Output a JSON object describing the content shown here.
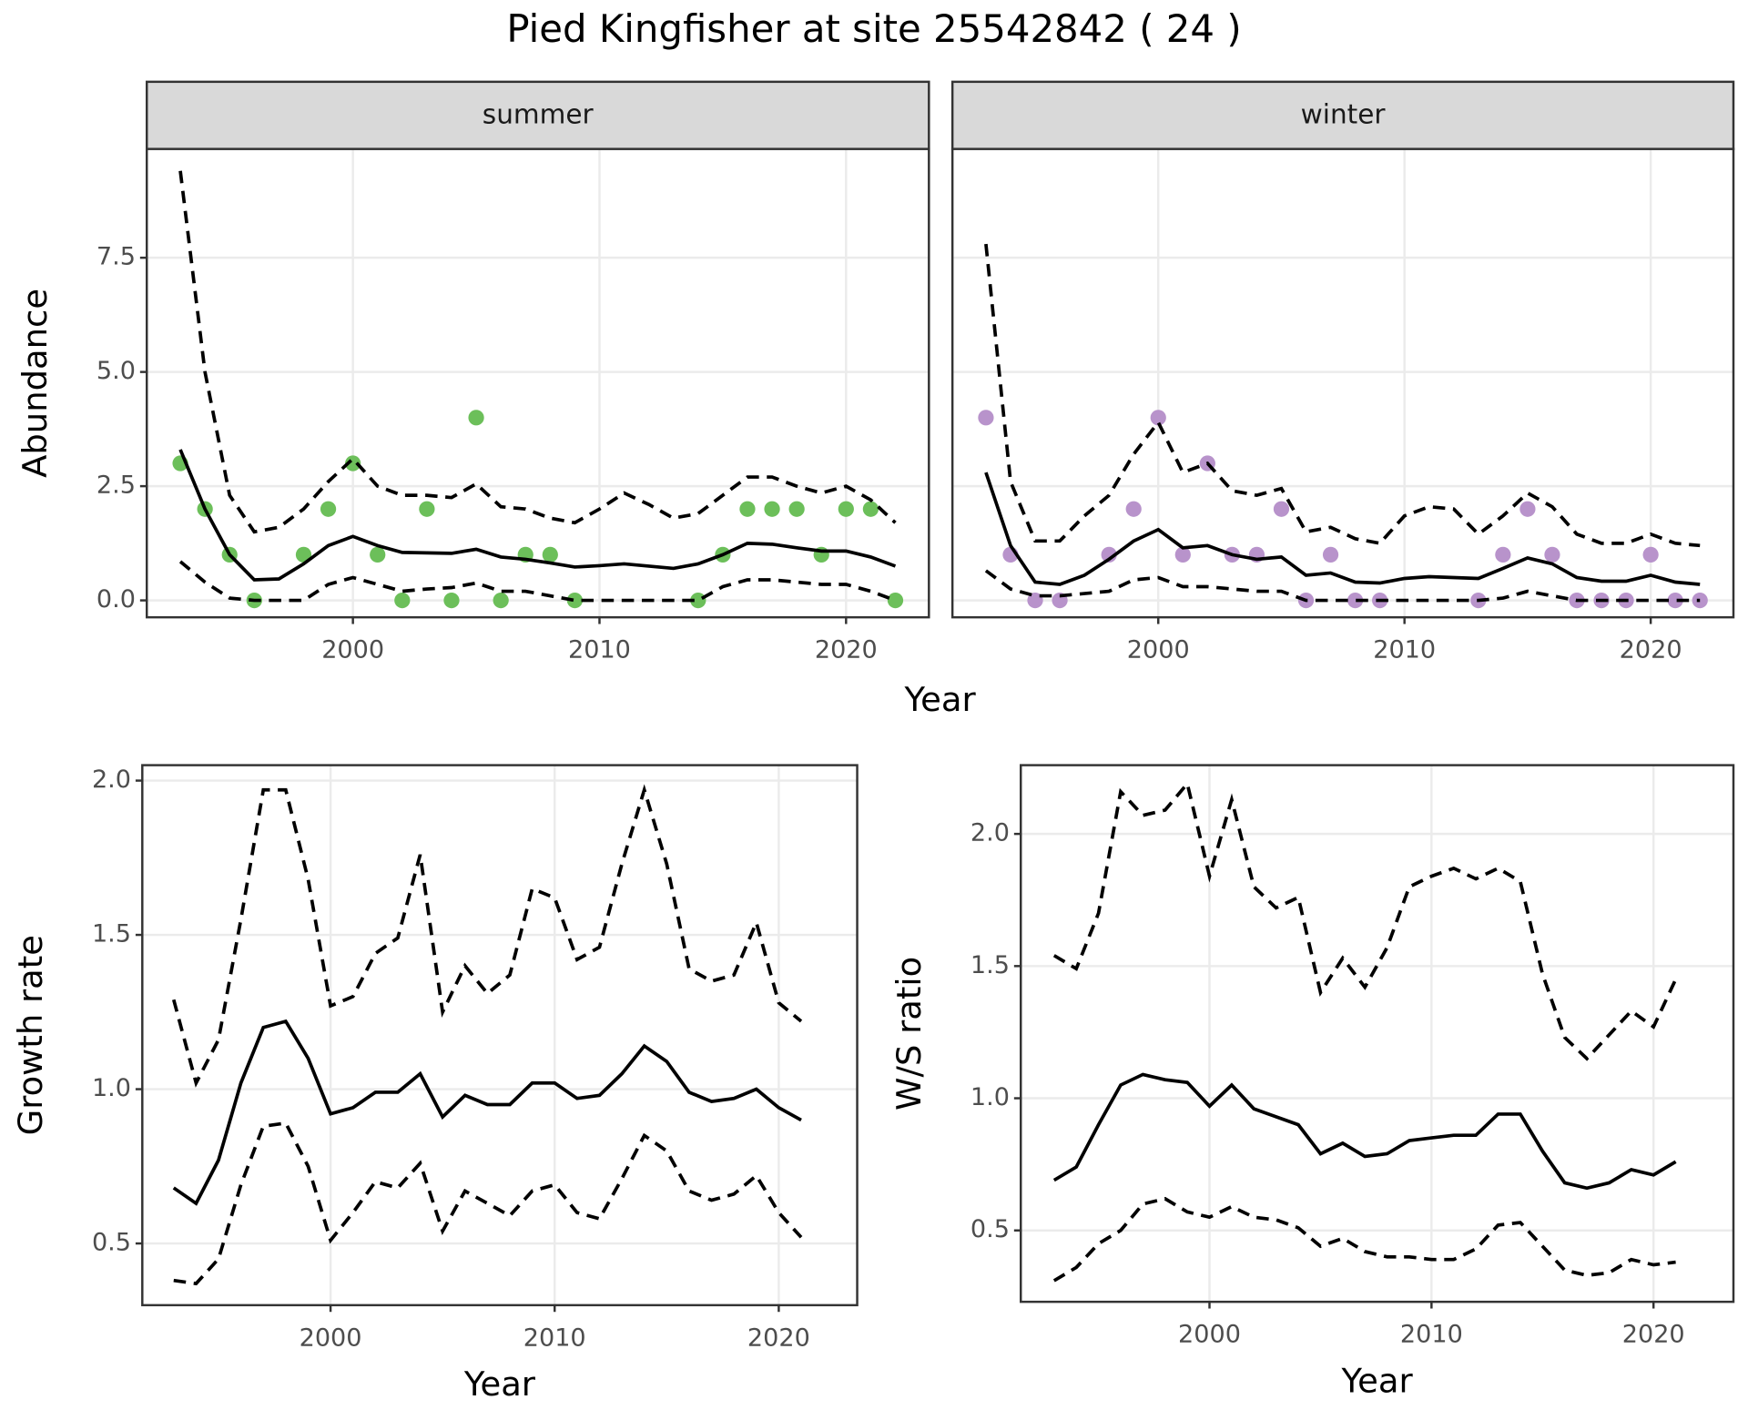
{
  "title": "Pied Kingfisher at site 25542842 ( 24 )",
  "shared_xlabel": "Year",
  "chart_data": [
    {
      "type": "line",
      "strip": "summer",
      "ylabel": "Abundance",
      "show_ytick_labels": true,
      "x": [
        1993,
        1994,
        1995,
        1996,
        1997,
        1998,
        1999,
        2000,
        2001,
        2002,
        2003,
        2004,
        2005,
        2006,
        2007,
        2008,
        2009,
        2010,
        2011,
        2012,
        2013,
        2014,
        2015,
        2016,
        2017,
        2018,
        2019,
        2020,
        2021,
        2022
      ],
      "series": [
        {
          "style": "points",
          "color": "#6cbf5a",
          "values": [
            3,
            2,
            1,
            0,
            null,
            1,
            2,
            3,
            1,
            0,
            2,
            0,
            4,
            0,
            1,
            1,
            0,
            null,
            null,
            null,
            null,
            0,
            1,
            2,
            2,
            2,
            1,
            2,
            2,
            0
          ]
        },
        {
          "style": "solid",
          "color": "#000000",
          "values": [
            3.3,
            2.0,
            1.0,
            0.45,
            0.47,
            0.8,
            1.2,
            1.4,
            1.2,
            1.05,
            1.04,
            1.03,
            1.12,
            0.95,
            0.9,
            0.82,
            0.73,
            0.76,
            0.8,
            0.75,
            0.7,
            0.8,
            1.0,
            1.25,
            1.23,
            1.15,
            1.08,
            1.08,
            0.95,
            0.75
          ]
        },
        {
          "style": "dashed",
          "color": "#000000",
          "values": [
            9.4,
            5.0,
            2.3,
            1.5,
            1.6,
            2.0,
            2.6,
            3.1,
            2.5,
            2.3,
            2.3,
            2.25,
            2.55,
            2.05,
            2.0,
            1.8,
            1.7,
            2.0,
            2.35,
            2.1,
            1.8,
            1.9,
            2.3,
            2.7,
            2.7,
            2.5,
            2.35,
            2.5,
            2.2,
            1.7
          ]
        },
        {
          "style": "dashed",
          "color": "#000000",
          "values": [
            0.85,
            0.4,
            0.05,
            0,
            0,
            0,
            0.35,
            0.5,
            0.35,
            0.2,
            0.25,
            0.28,
            0.38,
            0.2,
            0.2,
            0.1,
            0,
            0,
            0,
            0,
            0,
            0,
            0.3,
            0.45,
            0.45,
            0.4,
            0.35,
            0.35,
            0.2,
            0
          ]
        }
      ],
      "xlim": [
        1991.64,
        2023.36
      ],
      "xticks": [
        2000,
        2010,
        2020
      ],
      "ylim": [
        -0.37,
        9.88
      ],
      "yticks": [
        {
          "value": 0,
          "label": "0.0"
        },
        2.5,
        {
          "value": 5,
          "label": "5.0"
        },
        7.5
      ],
      "grid": true
    },
    {
      "type": "line",
      "strip": "winter",
      "show_ytick_labels": false,
      "x": [
        1993,
        1994,
        1995,
        1996,
        1997,
        1998,
        1999,
        2000,
        2001,
        2002,
        2003,
        2004,
        2005,
        2006,
        2007,
        2008,
        2009,
        2010,
        2011,
        2012,
        2013,
        2014,
        2015,
        2016,
        2017,
        2018,
        2019,
        2020,
        2021,
        2022
      ],
      "series": [
        {
          "style": "points",
          "color": "#b893cb",
          "values": [
            4,
            1,
            0,
            0,
            null,
            1,
            2,
            4,
            1,
            3,
            1,
            1,
            2,
            0,
            1,
            0,
            0,
            null,
            null,
            null,
            0,
            1,
            2,
            1,
            0,
            0,
            0,
            1,
            0,
            0
          ]
        },
        {
          "style": "solid",
          "color": "#000000",
          "values": [
            2.8,
            1.2,
            0.4,
            0.35,
            0.55,
            0.9,
            1.3,
            1.55,
            1.15,
            1.2,
            1.0,
            0.9,
            0.95,
            0.55,
            0.6,
            0.4,
            0.38,
            0.48,
            0.52,
            0.5,
            0.48,
            0.7,
            0.93,
            0.8,
            0.5,
            0.42,
            0.42,
            0.55,
            0.4,
            0.35
          ]
        },
        {
          "style": "dashed",
          "color": "#000000",
          "values": [
            7.8,
            2.6,
            1.3,
            1.3,
            1.85,
            2.3,
            3.2,
            3.9,
            2.8,
            3.0,
            2.4,
            2.3,
            2.45,
            1.5,
            1.6,
            1.35,
            1.25,
            1.85,
            2.05,
            2.0,
            1.45,
            1.85,
            2.35,
            2.05,
            1.45,
            1.25,
            1.25,
            1.45,
            1.25,
            1.2
          ]
        },
        {
          "style": "dashed",
          "color": "#000000",
          "values": [
            0.65,
            0.25,
            0.1,
            0.1,
            0.15,
            0.2,
            0.45,
            0.5,
            0.3,
            0.3,
            0.25,
            0.2,
            0.2,
            0,
            0,
            0,
            0,
            0,
            0,
            0,
            0,
            0.05,
            0.2,
            0.1,
            0,
            0,
            0,
            0,
            0,
            0
          ]
        }
      ],
      "xlim": [
        1991.64,
        2023.36
      ],
      "xticks": [
        2000,
        2010,
        2020
      ],
      "ylim": [
        -0.37,
        9.88
      ],
      "yticks": [
        0,
        2.5,
        5,
        7.5
      ],
      "grid": true
    },
    {
      "type": "line",
      "ylabel": "Growth rate",
      "xlabel": "Year",
      "show_ytick_labels": true,
      "x": [
        1993,
        1994,
        1995,
        1996,
        1997,
        1998,
        1999,
        2000,
        2001,
        2002,
        2003,
        2004,
        2005,
        2006,
        2007,
        2008,
        2009,
        2010,
        2011,
        2012,
        2013,
        2014,
        2015,
        2016,
        2017,
        2018,
        2019,
        2020,
        2021
      ],
      "series": [
        {
          "style": "solid",
          "color": "#000000",
          "values": [
            0.68,
            0.63,
            0.77,
            1.02,
            1.2,
            1.22,
            1.1,
            0.92,
            0.94,
            0.99,
            0.99,
            1.05,
            0.91,
            0.98,
            0.95,
            0.95,
            1.02,
            1.02,
            0.97,
            0.98,
            1.05,
            1.14,
            1.09,
            0.99,
            0.96,
            0.97,
            1.0,
            0.94,
            0.9
          ]
        },
        {
          "style": "dashed",
          "color": "#000000",
          "values": [
            1.29,
            1.02,
            1.16,
            1.55,
            1.97,
            1.97,
            1.68,
            1.27,
            1.3,
            1.44,
            1.49,
            1.76,
            1.25,
            1.4,
            1.31,
            1.37,
            1.65,
            1.62,
            1.42,
            1.46,
            1.73,
            1.97,
            1.73,
            1.39,
            1.35,
            1.37,
            1.54,
            1.28,
            1.22
          ]
        },
        {
          "style": "dashed",
          "color": "#000000",
          "values": [
            0.38,
            0.37,
            0.45,
            0.69,
            0.88,
            0.89,
            0.75,
            0.51,
            0.6,
            0.7,
            0.68,
            0.76,
            0.54,
            0.67,
            0.63,
            0.59,
            0.67,
            0.69,
            0.6,
            0.58,
            0.71,
            0.85,
            0.8,
            0.67,
            0.64,
            0.66,
            0.72,
            0.6,
            0.52
          ]
        }
      ],
      "xlim": [
        1991.6,
        2023.5
      ],
      "xticks": [
        2000,
        2010,
        2020
      ],
      "ylim": [
        0.3,
        2.05
      ],
      "yticks": [
        0.5,
        {
          "value": 1,
          "label": "1.0"
        },
        1.5,
        {
          "value": 2,
          "label": "2.0"
        }
      ],
      "grid": true
    },
    {
      "type": "line",
      "ylabel": "W/S ratio",
      "xlabel": "Year",
      "show_ytick_labels": true,
      "x": [
        1993,
        1994,
        1995,
        1996,
        1997,
        1998,
        1999,
        2000,
        2001,
        2002,
        2003,
        2004,
        2005,
        2006,
        2007,
        2008,
        2009,
        2010,
        2011,
        2012,
        2013,
        2014,
        2015,
        2016,
        2017,
        2018,
        2019,
        2020,
        2021
      ],
      "series": [
        {
          "style": "solid",
          "color": "#000000",
          "values": [
            0.69,
            0.74,
            0.9,
            1.05,
            1.09,
            1.07,
            1.06,
            0.97,
            1.05,
            0.96,
            0.93,
            0.9,
            0.79,
            0.83,
            0.78,
            0.79,
            0.84,
            0.85,
            0.86,
            0.86,
            0.94,
            0.94,
            0.8,
            0.68,
            0.66,
            0.68,
            0.73,
            0.71,
            0.76
          ]
        },
        {
          "style": "dashed",
          "color": "#000000",
          "values": [
            1.54,
            1.49,
            1.7,
            2.16,
            2.07,
            2.09,
            2.19,
            1.84,
            2.13,
            1.8,
            1.72,
            1.76,
            1.4,
            1.53,
            1.42,
            1.57,
            1.8,
            1.84,
            1.87,
            1.83,
            1.87,
            1.82,
            1.47,
            1.23,
            1.15,
            1.24,
            1.33,
            1.27,
            1.45
          ]
        },
        {
          "style": "dashed",
          "color": "#000000",
          "values": [
            0.31,
            0.36,
            0.45,
            0.5,
            0.6,
            0.62,
            0.57,
            0.55,
            0.59,
            0.55,
            0.54,
            0.51,
            0.44,
            0.47,
            0.42,
            0.4,
            0.4,
            0.39,
            0.39,
            0.43,
            0.52,
            0.53,
            0.44,
            0.35,
            0.33,
            0.34,
            0.39,
            0.37,
            0.38
          ]
        }
      ],
      "xlim": [
        1991.5,
        2023.6
      ],
      "xticks": [
        2000,
        2010,
        2020
      ],
      "ylim": [
        0.23,
        2.26
      ],
      "yticks": [
        0.5,
        {
          "value": 1,
          "label": "1.0"
        },
        1.5,
        {
          "value": 2,
          "label": "2.0"
        }
      ],
      "grid": true
    }
  ]
}
